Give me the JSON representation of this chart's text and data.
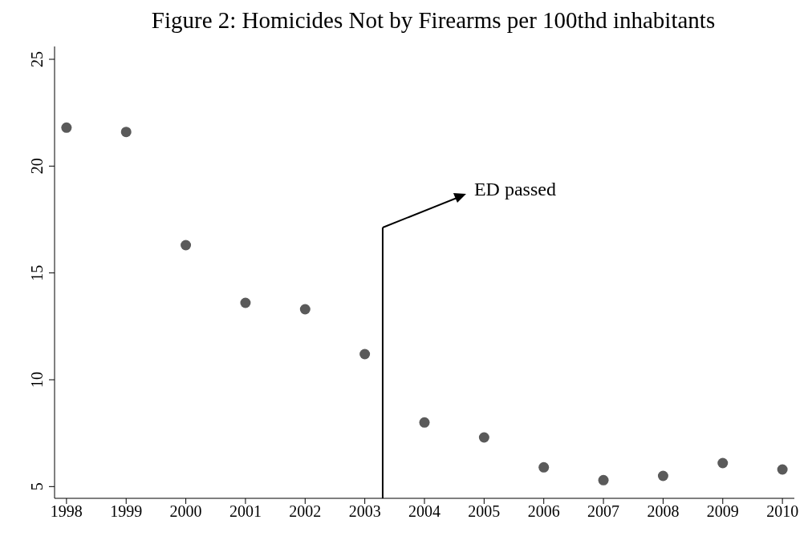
{
  "chart_data": {
    "type": "scatter",
    "title": "Figure 2: Homicides Not by Firearms per 100thd inhabitants",
    "x": [
      1998,
      1999,
      2000,
      2001,
      2002,
      2003,
      2004,
      2005,
      2006,
      2007,
      2008,
      2009,
      2010
    ],
    "series": [
      {
        "color": "#5a5a5a",
        "values": [
          21.8,
          21.6,
          16.3,
          13.6,
          13.3,
          11.2,
          8.0,
          7.3,
          5.9,
          5.3,
          5.5,
          6.1,
          5.8
        ]
      }
    ],
    "xlim": [
      1997.8,
      2010.2
    ],
    "xticks": [
      1998,
      1999,
      2000,
      2001,
      2002,
      2003,
      2004,
      2005,
      2006,
      2007,
      2008,
      2009,
      2010
    ],
    "ylim": [
      4.45,
      25.6
    ],
    "yticks": [
      5,
      10,
      15,
      20,
      25
    ],
    "marker": "circle",
    "ref_lines": [
      {
        "axis": "x",
        "value": 2003.3,
        "label": "ED passed",
        "color": "#000000"
      }
    ]
  }
}
